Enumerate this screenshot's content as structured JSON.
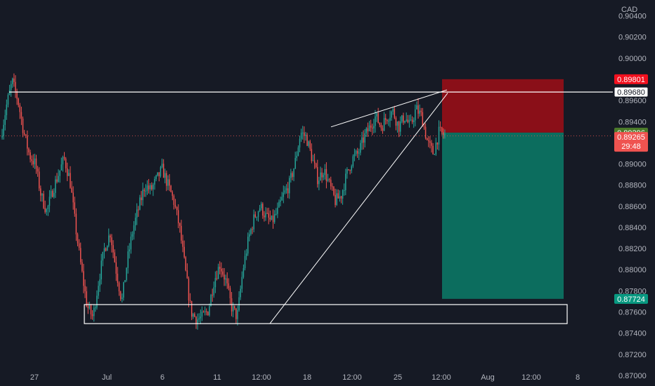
{
  "chart_data": {
    "type": "candlestick",
    "currency": "CAD",
    "ylim": [
      0.869,
      0.9055
    ],
    "y_ticks": [
      "0.90400",
      "0.90200",
      "0.90000",
      "0.89800",
      "0.89600",
      "0.89400",
      "0.89200",
      "0.89000",
      "0.88800",
      "0.88600",
      "0.88400",
      "0.88200",
      "0.88000",
      "0.87800",
      "0.87600",
      "0.87400",
      "0.87200",
      "0.87000"
    ],
    "x_ticks": [
      "27",
      "Jul",
      "6",
      "11",
      "12:00",
      "18",
      "12:00",
      "25",
      "12:00",
      "Aug",
      "12:00",
      "8"
    ],
    "price_marks": {
      "stop_loss": "0.89801",
      "resistance": "0.89680",
      "entry": "0.89296",
      "current": "0.89265",
      "countdown": "29:48",
      "take_profit": "0.87724"
    },
    "colors": {
      "background": "#161a25",
      "up": "#26a69a",
      "down": "#ef5350",
      "stop_zone": "#8a0f18",
      "target_zone": "#0c6d5e",
      "stop_badge": "#f2101e",
      "target_badge": "#089981",
      "entry_badge": "#4b7a2a",
      "grid_text": "#b2b5be"
    },
    "drawings": {
      "resistance_level": 0.8968,
      "support_zone": [
        0.8749,
        0.8767
      ],
      "wedge_lines": [
        {
          "from": 0.8749,
          "to": 0.8967
        },
        {
          "from": 0.8935,
          "to": 0.897
        }
      ],
      "short_position": {
        "entry": 0.89296,
        "stop": 0.89801,
        "target": 0.87724
      }
    },
    "price_path_keypoints": [
      0.8925,
      0.8955,
      0.8978,
      0.896,
      0.893,
      0.8908,
      0.89,
      0.887,
      0.8855,
      0.8875,
      0.889,
      0.8905,
      0.8885,
      0.884,
      0.88,
      0.8765,
      0.8755,
      0.879,
      0.882,
      0.8835,
      0.88,
      0.877,
      0.881,
      0.884,
      0.886,
      0.888,
      0.8875,
      0.8885,
      0.8895,
      0.888,
      0.8865,
      0.884,
      0.88,
      0.876,
      0.8753,
      0.8755,
      0.8762,
      0.879,
      0.8805,
      0.879,
      0.8765,
      0.8755,
      0.88,
      0.883,
      0.885,
      0.886,
      0.885,
      0.8845,
      0.8855,
      0.887,
      0.888,
      0.89,
      0.893,
      0.8925,
      0.8905,
      0.8885,
      0.8895,
      0.888,
      0.8865,
      0.887,
      0.889,
      0.8905,
      0.891,
      0.8925,
      0.8935,
      0.8945,
      0.8935,
      0.8945,
      0.895,
      0.8935,
      0.8945,
      0.8935,
      0.8952,
      0.8945,
      0.892,
      0.891,
      0.893,
      0.8927
    ]
  }
}
